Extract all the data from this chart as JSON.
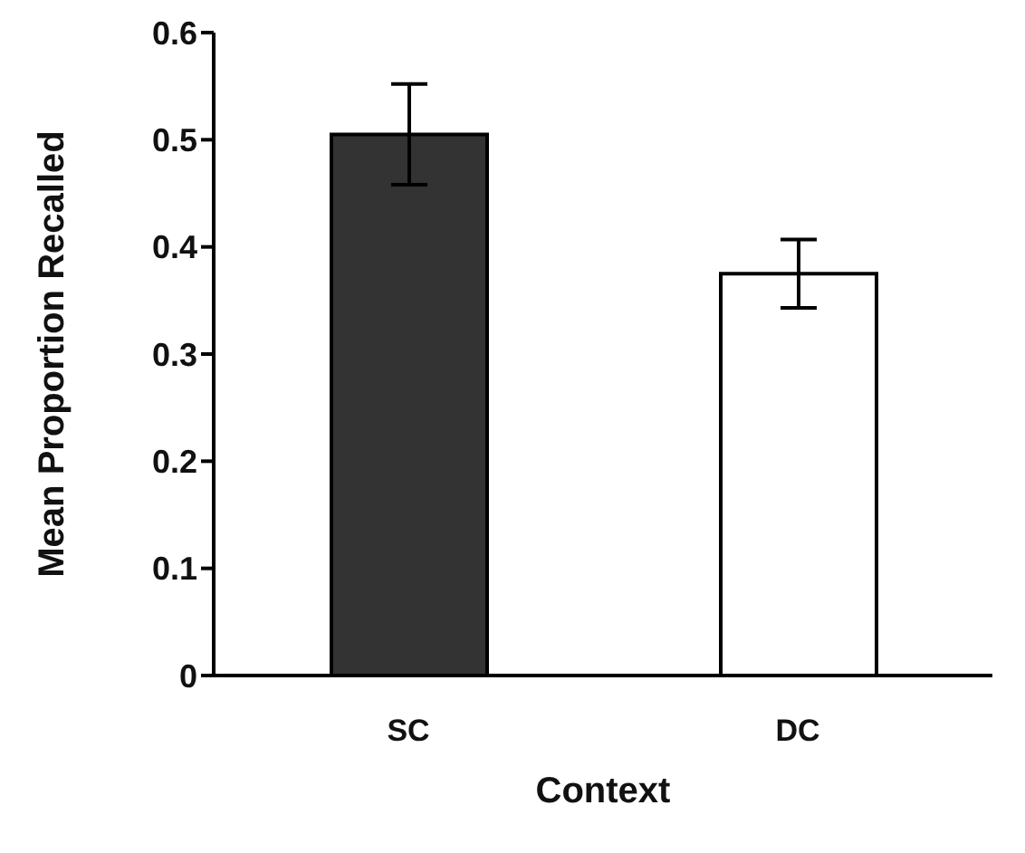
{
  "chart_data": {
    "type": "bar",
    "xlabel": "Context",
    "ylabel": "Mean Proportion Recalled",
    "categories": [
      "SC",
      "DC"
    ],
    "values": [
      0.505,
      0.375
    ],
    "errors": [
      0.047,
      0.032
    ],
    "colors": [
      "#333333",
      "#ffffff"
    ],
    "ylim": [
      0,
      0.6
    ],
    "yticks": [
      0,
      0.1,
      0.2,
      0.3,
      0.4,
      0.5,
      0.6
    ],
    "grid": false,
    "legend": false
  }
}
